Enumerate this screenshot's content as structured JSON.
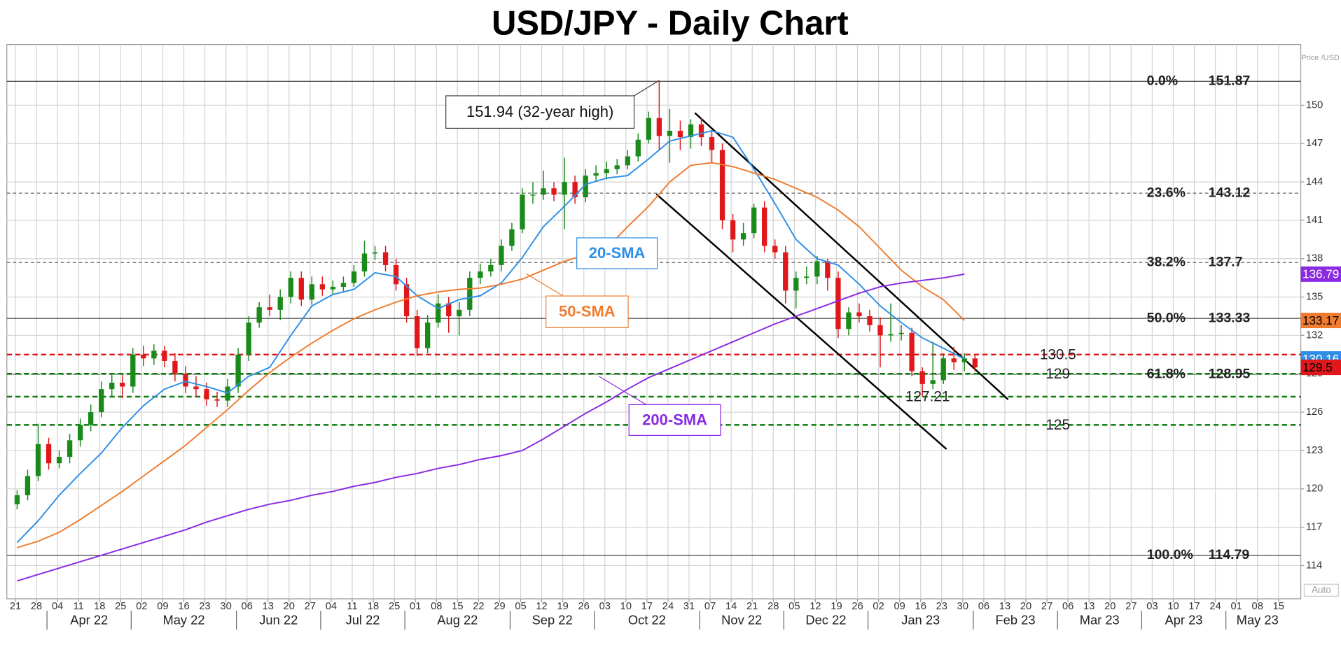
{
  "chart_data": {
    "type": "candlestick",
    "title": "USD/JPY - Daily Chart",
    "y_axis_label": "Price /USD",
    "auto_label": "Auto",
    "up_color": "#1a8a1a",
    "down_color": "#e0181c",
    "grid": true,
    "ylim": [
      111.4,
      154.75
    ],
    "yticks": [
      114,
      117,
      120,
      123,
      126,
      129,
      132,
      135,
      138,
      141,
      144,
      147,
      150
    ],
    "x_labels": [
      "21",
      "28",
      "04",
      "11",
      "18",
      "25",
      "02",
      "09",
      "16",
      "23",
      "30",
      "06",
      "13",
      "20",
      "27",
      "04",
      "11",
      "18",
      "25",
      "01",
      "08",
      "15",
      "22",
      "29",
      "05",
      "12",
      "19",
      "26",
      "03",
      "10",
      "17",
      "24",
      "31",
      "07",
      "14",
      "21",
      "28",
      "05",
      "12",
      "19",
      "26",
      "02",
      "09",
      "16",
      "23",
      "30",
      "06",
      "13",
      "20",
      "27",
      "06",
      "13",
      "20",
      "27",
      "03",
      "10",
      "17",
      "24",
      "01",
      "08",
      "15"
    ],
    "months": [
      "Apr 22",
      "May 22",
      "Jun 22",
      "Jul 22",
      "Aug 22",
      "Sep 22",
      "Oct 22",
      "Nov 22",
      "Dec 22",
      "Jan 23",
      "Feb 23",
      "Mar 23",
      "Apr 23",
      "May 23"
    ],
    "candles": [
      [
        118.8,
        119.9,
        118.4,
        119.5
      ],
      [
        119.5,
        121.5,
        119.1,
        121
      ],
      [
        121,
        125.1,
        120.6,
        123.5
      ],
      [
        123.5,
        124,
        121.5,
        122
      ],
      [
        122,
        123,
        121.6,
        122.5
      ],
      [
        122.5,
        124.3,
        122,
        123.8
      ],
      [
        123.8,
        125.5,
        123.3,
        125
      ],
      [
        125,
        126.6,
        124.5,
        126
      ],
      [
        126,
        128.4,
        125.6,
        127.8
      ],
      [
        127.8,
        128.9,
        127.2,
        128.3
      ],
      [
        128.3,
        128.9,
        127.1,
        128
      ],
      [
        128,
        131,
        127.5,
        130.5
      ],
      [
        130.5,
        131.2,
        129.6,
        130.2
      ],
      [
        130.2,
        131.3,
        129.7,
        130.8
      ],
      [
        130.8,
        131.2,
        129.5,
        130
      ],
      [
        130,
        130.6,
        128.4,
        129
      ],
      [
        129,
        129.6,
        127.5,
        128
      ],
      [
        128,
        128.8,
        127.2,
        127.8
      ],
      [
        127.8,
        128.3,
        126.5,
        127
      ],
      [
        127,
        127.6,
        126.4,
        126.9
      ],
      [
        126.9,
        128.6,
        126.4,
        128
      ],
      [
        128,
        131,
        127.5,
        130.5
      ],
      [
        130.5,
        133.5,
        130,
        133
      ],
      [
        133,
        134.6,
        132.6,
        134.2
      ],
      [
        134.2,
        135.2,
        133.5,
        134
      ],
      [
        134,
        135.6,
        133.2,
        135
      ],
      [
        135,
        137,
        134.5,
        136.5
      ],
      [
        136.5,
        137,
        134.3,
        134.8
      ],
      [
        134.8,
        136.6,
        134.4,
        136
      ],
      [
        136,
        136.6,
        135.1,
        135.6
      ],
      [
        135.6,
        136.3,
        135.2,
        135.8
      ],
      [
        135.8,
        136.6,
        135.4,
        136.1
      ],
      [
        136.1,
        137.5,
        135.8,
        137
      ],
      [
        137,
        139.4,
        136.6,
        138.4
      ],
      [
        138.4,
        139,
        137.9,
        138.5
      ],
      [
        138.5,
        139,
        137,
        137.5
      ],
      [
        137.5,
        138,
        135.5,
        136
      ],
      [
        136,
        136.5,
        133,
        133.5
      ],
      [
        133.5,
        134,
        130.4,
        131
      ],
      [
        131,
        133.6,
        130.6,
        133
      ],
      [
        133,
        135.2,
        132.6,
        134.5
      ],
      [
        134.5,
        135,
        132.2,
        133.5
      ],
      [
        133.5,
        134.6,
        132,
        134
      ],
      [
        134,
        137,
        133.5,
        136.5
      ],
      [
        136.5,
        137.6,
        136,
        137
      ],
      [
        137,
        138,
        136.6,
        137.5
      ],
      [
        137.5,
        139.5,
        137,
        139
      ],
      [
        139,
        140.8,
        138.6,
        140.3
      ],
      [
        140.3,
        143.5,
        140,
        143
      ],
      [
        143,
        144,
        142.3,
        143
      ],
      [
        143,
        144.9,
        142.6,
        143.5
      ],
      [
        143.5,
        144,
        142.5,
        143
      ],
      [
        143,
        145.9,
        140.3,
        144
      ],
      [
        144,
        144.5,
        142.3,
        142.8
      ],
      [
        142.8,
        145,
        142.4,
        144.5
      ],
      [
        144.5,
        145.3,
        144,
        144.7
      ],
      [
        144.7,
        145.6,
        144.2,
        145
      ],
      [
        145,
        145.8,
        144.6,
        145.3
      ],
      [
        145.3,
        146.5,
        145,
        146
      ],
      [
        146,
        147.8,
        145.6,
        147.3
      ],
      [
        147.3,
        149.5,
        147,
        149
      ],
      [
        149,
        151.94,
        146.5,
        147.6
      ],
      [
        147.6,
        149.7,
        145.5,
        148
      ],
      [
        148,
        148.8,
        146.5,
        147.5
      ],
      [
        147.5,
        148.9,
        146.6,
        148.5
      ],
      [
        148.5,
        149,
        146.8,
        147.5
      ],
      [
        147.5,
        148,
        145.5,
        146.5
      ],
      [
        146.5,
        147,
        140.3,
        141
      ],
      [
        141,
        141.5,
        138.5,
        139.5
      ],
      [
        139.5,
        140.8,
        139,
        140
      ],
      [
        140,
        142.3,
        139.6,
        142
      ],
      [
        142,
        142.5,
        138.5,
        139
      ],
      [
        139,
        139.5,
        138,
        138.5
      ],
      [
        138.5,
        139,
        134.5,
        135.5
      ],
      [
        135.5,
        137,
        134.1,
        136.5
      ],
      [
        136.5,
        137.4,
        136,
        136.6
      ],
      [
        136.6,
        138.2,
        136,
        137.8
      ],
      [
        137.8,
        138,
        135.5,
        136.5
      ],
      [
        136.5,
        137,
        131.8,
        132.5
      ],
      [
        132.5,
        134.2,
        132,
        133.8
      ],
      [
        133.8,
        134.5,
        133,
        133.5
      ],
      [
        133.5,
        134,
        132.3,
        132.8
      ],
      [
        132.8,
        133.4,
        129.5,
        132
      ],
      [
        132,
        134.5,
        131.5,
        132.1
      ],
      [
        132.1,
        132.8,
        131.6,
        132.2
      ],
      [
        132.2,
        132.6,
        128.8,
        129.2
      ],
      [
        129.2,
        129.5,
        127.21,
        128.2
      ],
      [
        128.2,
        131.5,
        127.8,
        128.5
      ],
      [
        128.5,
        130.6,
        128.2,
        130.2
      ],
      [
        130.2,
        131.1,
        129.3,
        129.9
      ],
      [
        129.9,
        130.6,
        129.2,
        130.2
      ],
      [
        130.2,
        130.5,
        129.2,
        129.5
      ]
    ],
    "series": [
      {
        "name": "20-SMA",
        "color": "#2f8fe6",
        "values": [
          115.8,
          117.5,
          119.5,
          121.2,
          122.8,
          124.8,
          126.5,
          127.8,
          128.4,
          128,
          127.5,
          128.8,
          129.5,
          132,
          134.3,
          135.2,
          135.6,
          136.9,
          136.6,
          135.1,
          134.1,
          134.8,
          135.1,
          136.1,
          138.1,
          140.5,
          142.1,
          143.8,
          144.3,
          144.5,
          145.8,
          147.2,
          147.6,
          148,
          147.5,
          145,
          142.3,
          139.5,
          138,
          137.5,
          136,
          134.3,
          133,
          131.8,
          131,
          130.16
        ]
      },
      {
        "name": "50-SMA",
        "color": "#f07c30",
        "values": [
          115.4,
          115.9,
          116.6,
          117.6,
          118.7,
          119.8,
          121,
          122.2,
          123.4,
          124.8,
          126.2,
          127.7,
          129.1,
          130.3,
          131.4,
          132.4,
          133.3,
          134,
          134.6,
          135.1,
          135.4,
          135.6,
          135.7,
          136,
          136.4,
          137.1,
          137.8,
          138.3,
          138.8,
          140.5,
          142.1,
          144,
          145.3,
          145.5,
          145.2,
          144.7,
          144.2,
          143.5,
          142.8,
          141.8,
          140.5,
          138.8,
          137.1,
          135.8,
          134.8,
          133.17
        ]
      },
      {
        "name": "200-SMA",
        "color": "#8a2be2",
        "values": [
          112.8,
          113.3,
          113.8,
          114.3,
          114.8,
          115.3,
          115.8,
          116.3,
          116.8,
          117.4,
          117.9,
          118.4,
          118.8,
          119.1,
          119.5,
          119.8,
          120.2,
          120.5,
          120.9,
          121.2,
          121.6,
          121.9,
          122.3,
          122.6,
          123,
          123.9,
          124.9,
          125.9,
          126.8,
          127.8,
          128.7,
          129.4,
          130.1,
          130.8,
          131.5,
          132.2,
          132.9,
          133.5,
          134.1,
          134.7,
          135.3,
          135.8,
          136.1,
          136.3,
          136.5,
          136.79
        ]
      }
    ],
    "levels": [
      {
        "value": 130.5,
        "color": "#e0181c"
      },
      {
        "value": 129,
        "color": "#0a7a0a"
      },
      {
        "value": 127.21,
        "color": "#0a7a0a"
      },
      {
        "value": 125,
        "color": "#0a7a0a"
      }
    ],
    "fibonacci": [
      {
        "label": "0.0%",
        "value": 151.87,
        "style": "solid"
      },
      {
        "label": "23.6%",
        "value": 143.12,
        "style": "dashed"
      },
      {
        "label": "38.2%",
        "value": 137.7,
        "style": "dashed"
      },
      {
        "label": "50.0%",
        "value": 133.33,
        "style": "solid"
      },
      {
        "label": "61.8%",
        "value": 128.95,
        "style": "dashed"
      },
      {
        "label": "100.0%",
        "value": 114.79,
        "style": "solid"
      }
    ],
    "annotation": "151.94 (32-year high)"
  }
}
